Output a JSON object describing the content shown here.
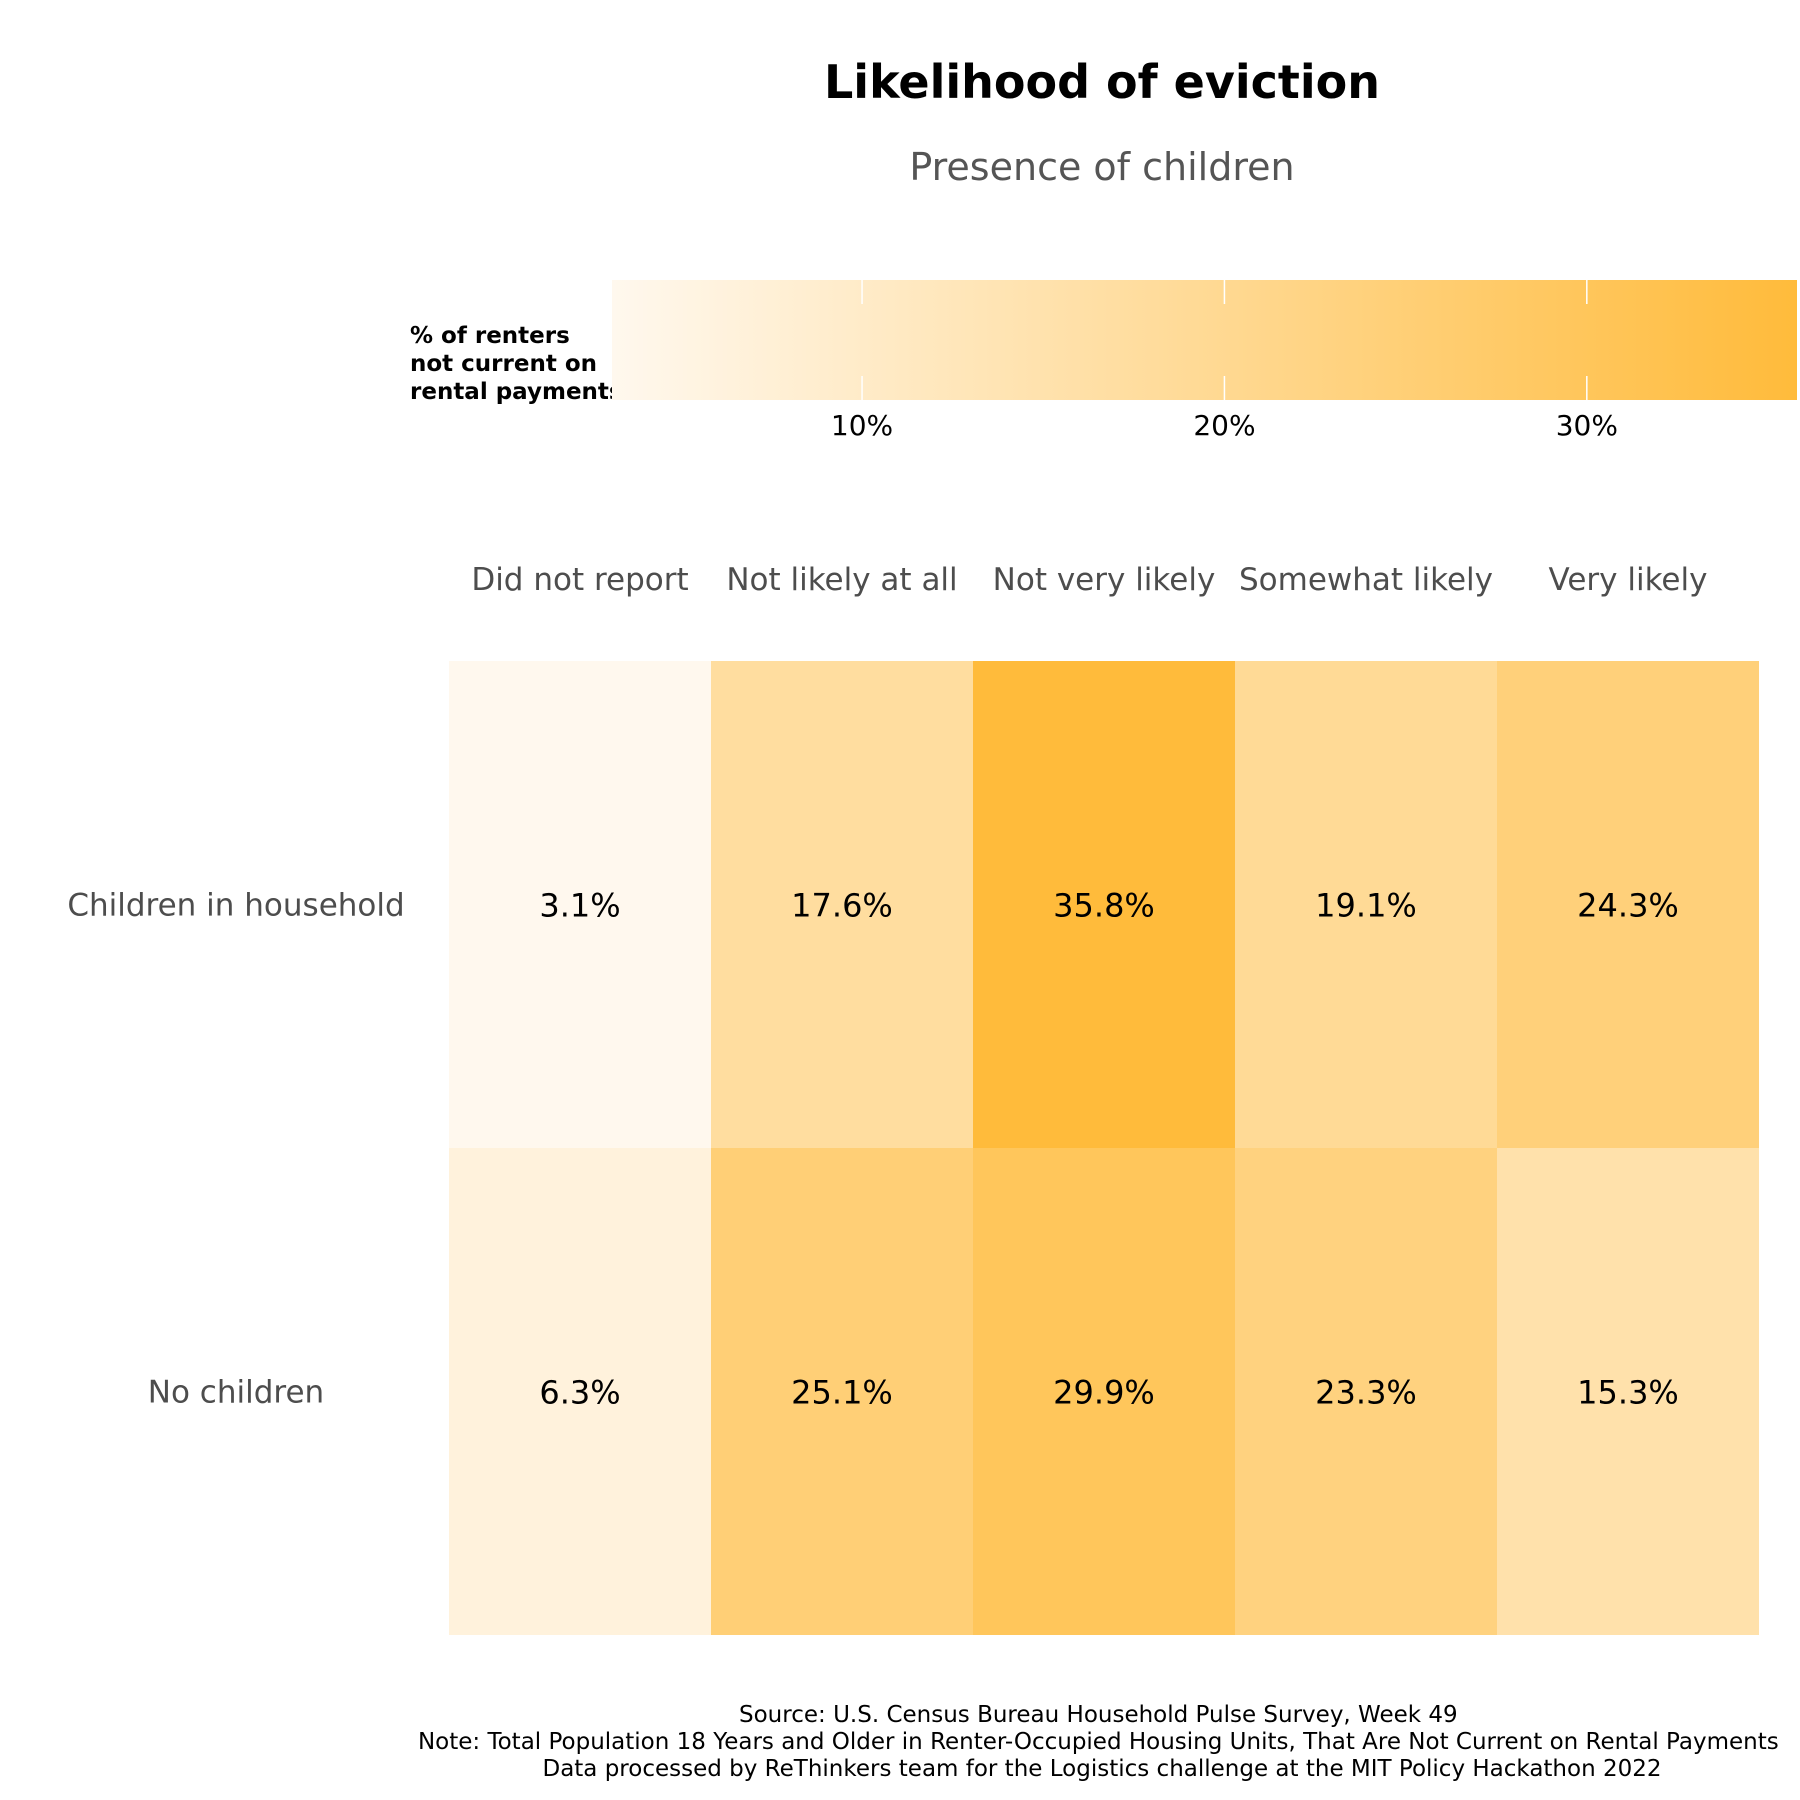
{
  "chart_data": {
    "type": "heatmap",
    "title": "Likelihood of eviction",
    "subtitle": "Presence of children",
    "legend": {
      "title_lines": [
        "% of renters",
        "not current on",
        "rental payments"
      ],
      "placement": "top",
      "range": [
        3.1,
        35.8
      ],
      "ticks": [
        10,
        20,
        30
      ],
      "tick_labels": [
        "10%",
        "20%",
        "30%"
      ],
      "color_low": "#fff8ee",
      "color_high": "#ffbb3b"
    },
    "columns": [
      "Did not report",
      "Not likely at all",
      "Not very likely",
      "Somewhat likely",
      "Very likely"
    ],
    "rows": [
      "Children in household",
      "No children"
    ],
    "values": [
      [
        3.1,
        17.6,
        35.8,
        19.1,
        24.3
      ],
      [
        6.3,
        25.1,
        29.9,
        23.3,
        15.3
      ]
    ],
    "labels": [
      [
        "3.1%",
        "17.6%",
        "35.8%",
        "19.1%",
        "24.3%"
      ],
      [
        "6.3%",
        "25.1%",
        "29.9%",
        "23.3%",
        "15.3%"
      ]
    ],
    "caption": [
      "Source: U.S. Census Bureau Household Pulse Survey, Week 49",
      "Note: Total Population 18 Years and Older in Renter-Occupied Housing Units, That Are Not Current on Rental Payments",
      "Data processed by ReThinkers team for the Logistics challenge at the MIT Policy Hackathon 2022"
    ]
  }
}
